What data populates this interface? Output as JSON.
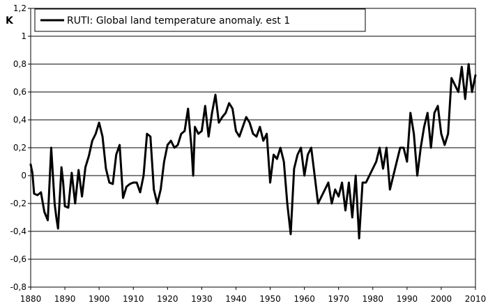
{
  "chart_data": {
    "type": "line",
    "title": "",
    "xlabel": "",
    "ylabel": "K",
    "xlim": [
      1880,
      2010
    ],
    "ylim": [
      -0.8,
      1.2
    ],
    "x_ticks": [
      1880,
      1890,
      1900,
      1910,
      1920,
      1930,
      1940,
      1950,
      1960,
      1970,
      1980,
      1990,
      2000,
      2010
    ],
    "x_tick_labels": [
      "1880",
      "1890",
      "1900",
      "1910",
      "1920",
      "1930",
      "1940",
      "1950",
      "1960",
      "1970",
      "1980",
      "1990",
      "2000",
      "2010"
    ],
    "y_ticks": [
      -0.8,
      -0.6,
      -0.4,
      -0.2,
      0,
      0.2,
      0.4,
      0.6,
      0.8,
      1,
      1.2
    ],
    "y_tick_labels": [
      "-0,8",
      "-0,6",
      "-0,4",
      "-0,2",
      "0",
      "0,2",
      "0,4",
      "0,6",
      "0,8",
      "1",
      "1,2"
    ],
    "grid": "horizontal",
    "legend_position": "top-left",
    "series": [
      {
        "name": "RUTI: Global land temperature anomaly. est 1",
        "color": "#000000",
        "x": [
          1880,
          1880.5,
          1881,
          1882,
          1883,
          1884,
          1885,
          1886,
          1887,
          1887.5,
          1888,
          1889,
          1889.5,
          1890,
          1891,
          1892,
          1893,
          1894,
          1895,
          1896,
          1897,
          1898,
          1899,
          1900,
          1901,
          1902,
          1903,
          1904,
          1905,
          1906,
          1907,
          1908,
          1909,
          1910,
          1911,
          1912,
          1913,
          1914,
          1915,
          1916,
          1917,
          1918,
          1919,
          1920,
          1921,
          1922,
          1923,
          1924,
          1925,
          1926,
          1927,
          1927.5,
          1928,
          1929,
          1930,
          1931,
          1932,
          1933,
          1934,
          1935,
          1936,
          1937,
          1938,
          1939,
          1940,
          1941,
          1942,
          1943,
          1944,
          1945,
          1946,
          1947,
          1948,
          1949,
          1950,
          1951,
          1952,
          1953,
          1954,
          1955,
          1956,
          1957,
          1958,
          1959,
          1960,
          1961,
          1962,
          1963,
          1964,
          1965,
          1966,
          1967,
          1968,
          1969,
          1970,
          1971,
          1972,
          1973,
          1974,
          1975,
          1976,
          1977,
          1978,
          1979,
          1980,
          1981,
          1982,
          1983,
          1984,
          1985,
          1986,
          1987,
          1988,
          1989,
          1990,
          1991,
          1992,
          1993,
          1994,
          1995,
          1996,
          1997,
          1998,
          1999,
          2000,
          2001,
          2002,
          2003,
          2004,
          2005,
          2006,
          2007,
          2008,
          2009,
          2010
        ],
        "values": [
          0.08,
          0.02,
          -0.13,
          -0.14,
          -0.12,
          -0.26,
          -0.32,
          0.2,
          -0.2,
          -0.3,
          -0.38,
          0.06,
          -0.05,
          -0.22,
          -0.23,
          0.02,
          -0.2,
          0.04,
          -0.15,
          0.06,
          0.14,
          0.25,
          0.3,
          0.38,
          0.28,
          0.05,
          -0.05,
          -0.06,
          0.15,
          0.22,
          -0.16,
          -0.08,
          -0.06,
          -0.05,
          -0.05,
          -0.12,
          0.0,
          0.3,
          0.28,
          -0.1,
          -0.2,
          -0.1,
          0.1,
          0.22,
          0.25,
          0.2,
          0.22,
          0.3,
          0.32,
          0.48,
          0.2,
          0.0,
          0.35,
          0.3,
          0.32,
          0.5,
          0.28,
          0.45,
          0.58,
          0.38,
          0.42,
          0.45,
          0.52,
          0.48,
          0.32,
          0.28,
          0.35,
          0.42,
          0.38,
          0.3,
          0.28,
          0.35,
          0.25,
          0.3,
          -0.05,
          0.15,
          0.12,
          0.2,
          0.1,
          -0.2,
          -0.42,
          0.05,
          0.15,
          0.2,
          0.0,
          0.15,
          0.2,
          0.0,
          -0.2,
          -0.15,
          -0.1,
          -0.05,
          -0.2,
          -0.1,
          -0.15,
          -0.05,
          -0.25,
          -0.05,
          -0.3,
          0.0,
          -0.45,
          -0.05,
          -0.05,
          0.0,
          0.05,
          0.1,
          0.2,
          0.05,
          0.2,
          -0.1,
          0.0,
          0.1,
          0.2,
          0.2,
          0.1,
          0.45,
          0.3,
          0.0,
          0.2,
          0.35,
          0.45,
          0.2,
          0.45,
          0.5,
          0.3,
          0.22,
          0.3,
          0.7,
          0.65,
          0.6,
          0.78,
          0.55,
          0.8,
          0.6,
          0.72
        ]
      }
    ]
  }
}
